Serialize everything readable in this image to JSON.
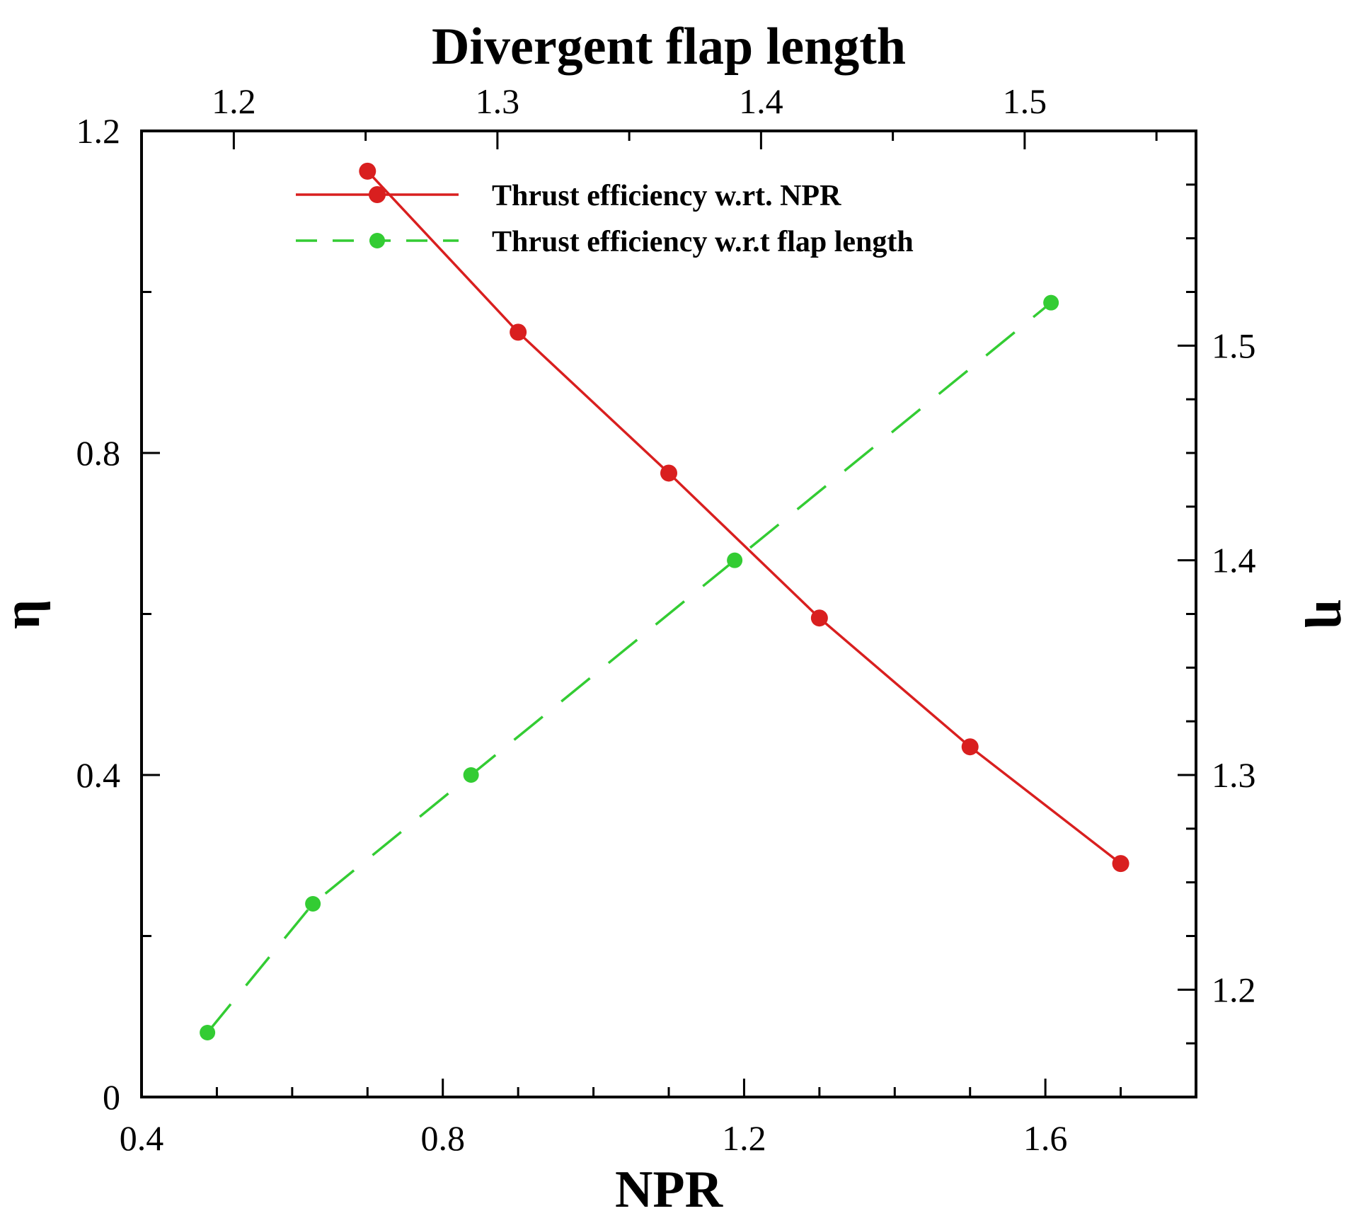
{
  "chart_data": {
    "type": "line",
    "title": "Divergent flap length",
    "xlabel": "NPR",
    "ylabel_left": "η",
    "ylabel_right": "η",
    "x_bottom": {
      "lim": [
        0.4,
        1.8
      ],
      "major_ticks": [
        0.4,
        0.8,
        1.2,
        1.6
      ],
      "tick_labels": [
        "0.4",
        "0.8",
        "1.2",
        "1.6"
      ]
    },
    "y_left": {
      "lim": [
        0,
        1.2
      ],
      "major_ticks": [
        0,
        0.4,
        0.8,
        1.2
      ],
      "tick_labels": [
        "0",
        "0.4",
        "0.8",
        "1.2"
      ]
    },
    "x_top": {
      "lim": [
        1.165,
        1.565
      ],
      "major_ticks": [
        1.2,
        1.3,
        1.4,
        1.5
      ],
      "tick_labels": [
        "1.2",
        "1.3",
        "1.4",
        "1.5"
      ]
    },
    "y_right": {
      "lim": [
        1.15,
        1.6
      ],
      "major_ticks": [
        1.2,
        1.3,
        1.4,
        1.5
      ],
      "tick_labels": [
        "1.2",
        "1.3",
        "1.4",
        "1.5"
      ]
    },
    "series": [
      {
        "name": "Thrust efficiency w.rt. NPR",
        "color": "#d91f1f",
        "line_style": "solid",
        "axes": "bottom-left",
        "x": [
          0.7,
          0.9,
          1.1,
          1.3,
          1.5,
          1.7
        ],
        "y": [
          1.15,
          0.95,
          0.775,
          0.595,
          0.435,
          0.29
        ]
      },
      {
        "name": "Thrust efficiency w.r.t flap length",
        "color": "#33cc33",
        "line_style": "dashed",
        "axes": "top-right",
        "x": [
          1.19,
          1.23,
          1.29,
          1.39,
          1.51
        ],
        "y": [
          1.18,
          1.24,
          1.3,
          1.4,
          1.52
        ]
      }
    ],
    "legend_position": "top-center",
    "grid": false
  }
}
